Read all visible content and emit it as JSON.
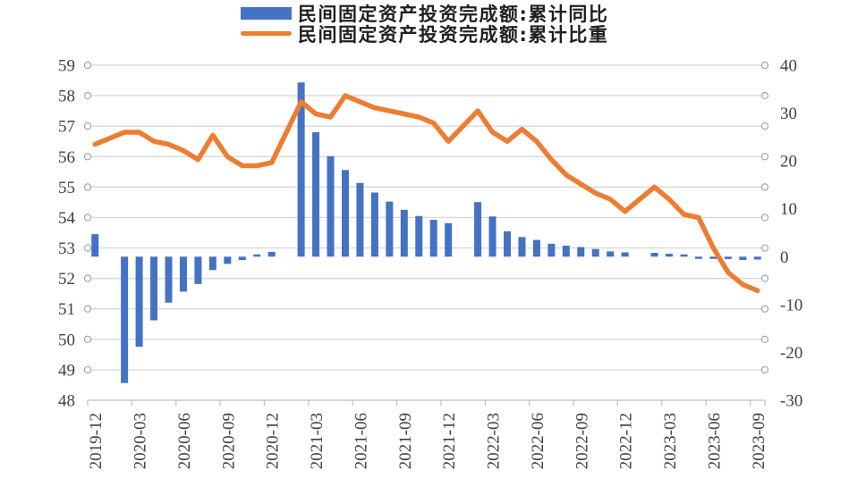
{
  "chart": {
    "background": "#FFFFFF",
    "legend": {
      "position": "top-center",
      "items": [
        {
          "label": "民间固定资产投资完成额:累计同比",
          "swatch": "bar",
          "color": "#4472C4"
        },
        {
          "label": "民间固定资产投资完成额:累计比重",
          "swatch": "line",
          "color": "#ED7D31"
        }
      ]
    }
  },
  "chart_data": {
    "type": "bar+line dual-axis combo",
    "x": [
      "2019-12",
      "2020-02",
      "2020-03",
      "2020-04",
      "2020-05",
      "2020-06",
      "2020-07",
      "2020-08",
      "2020-09",
      "2020-10",
      "2020-11",
      "2020-12",
      "2021-02",
      "2021-03",
      "2021-04",
      "2021-05",
      "2021-06",
      "2021-07",
      "2021-08",
      "2021-09",
      "2021-10",
      "2021-11",
      "2021-12",
      "2022-02",
      "2022-03",
      "2022-04",
      "2022-05",
      "2022-06",
      "2022-07",
      "2022-08",
      "2022-09",
      "2022-10",
      "2022-11",
      "2022-12",
      "2023-02",
      "2023-03",
      "2023-04",
      "2023-05",
      "2023-06",
      "2023-07",
      "2023-08",
      "2023-09"
    ],
    "series": [
      {
        "name": "民间固定资产投资完成额:累计同比",
        "type": "bar",
        "axis": "right",
        "unit": "%",
        "color": "#4472C4",
        "values": [
          4.7,
          -26.4,
          -18.8,
          -13.3,
          -9.6,
          -7.3,
          -5.7,
          -2.8,
          -1.5,
          -0.7,
          0.2,
          1.0,
          36.4,
          26.0,
          21.0,
          18.1,
          15.4,
          13.4,
          11.5,
          9.8,
          8.5,
          7.7,
          7.0,
          11.4,
          8.4,
          5.3,
          4.1,
          3.5,
          2.7,
          2.3,
          2.0,
          1.6,
          1.1,
          0.9,
          0.8,
          0.6,
          0.4,
          -0.1,
          -0.2,
          -0.5,
          -0.7,
          -0.6
        ]
      },
      {
        "name": "民间固定资产投资完成额:累计比重",
        "type": "line",
        "axis": "left",
        "unit": "%",
        "color": "#ED7D31",
        "values": [
          56.4,
          56.8,
          56.8,
          56.5,
          56.4,
          56.2,
          55.9,
          56.7,
          56.0,
          55.7,
          55.7,
          55.8,
          57.8,
          57.4,
          57.3,
          58.0,
          57.8,
          57.6,
          57.5,
          57.4,
          57.3,
          57.1,
          56.5,
          57.5,
          56.8,
          56.5,
          56.9,
          56.5,
          55.9,
          55.4,
          55.1,
          54.8,
          54.6,
          54.2,
          55.0,
          54.6,
          54.1,
          54.0,
          53.0,
          52.2,
          51.8,
          51.6
        ]
      }
    ],
    "left_axis": {
      "min": 48,
      "max": 59,
      "tick_step": 1,
      "ticks": [
        59,
        58,
        57,
        56,
        55,
        54,
        53,
        52,
        51,
        50,
        49,
        48
      ]
    },
    "right_axis": {
      "min": -30,
      "max": 40,
      "tick_step": 10,
      "ticks": [
        40,
        30,
        20,
        10,
        0,
        -10,
        -20,
        -30
      ]
    },
    "x_axis": {
      "label_rotation": -90,
      "tick_labels": [
        "2019-12",
        "2020-03",
        "2020-06",
        "2020-09",
        "2020-12",
        "2021-03",
        "2021-06",
        "2021-09",
        "2021-12",
        "2022-03",
        "2022-06",
        "2022-09",
        "2022-12",
        "2023-03",
        "2023-06",
        "2023-09"
      ]
    },
    "grid": "horizontal",
    "legend_position": "top-center",
    "styles": {
      "gridline_color": "#D9D9D9",
      "axis_color": "#BFBFBF",
      "tick_circle_stroke": "#A6A6A6",
      "axis_text_color": "#404040",
      "legend_text_color": "#1F1F1F"
    }
  }
}
